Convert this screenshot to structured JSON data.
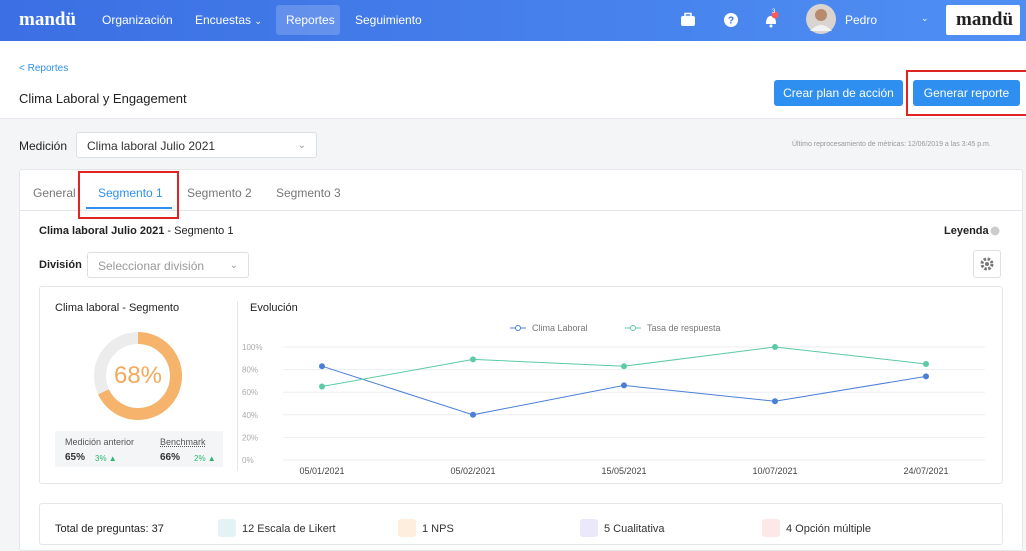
{
  "nav": {
    "logo": "mandü",
    "items": [
      "Organización",
      "Encuestas",
      "Reportes",
      "Seguimiento"
    ],
    "badge": "3",
    "user": "Pedro",
    "brand": "mandü"
  },
  "header": {
    "breadcrumb": "< Reportes",
    "title": "Clima Laboral y Engagement",
    "buttons": [
      "Crear plan de acción",
      "Generar reporte"
    ]
  },
  "filter": {
    "label": "Medición",
    "selected": "Clima laboral Julio 2021",
    "note": "Último reprocesamiento de métricas: 12/06/2019 a las 3:45 p.m."
  },
  "tabs": [
    "General",
    "Segmento 1",
    "Segmento 2",
    "Segmento 3"
  ],
  "card": {
    "title": "Clima laboral Julio 2021",
    "subtitle": " - Segmento 1",
    "legend_link": "Leyenda",
    "division_label": "División",
    "division_placeholder": "Seleccionar división"
  },
  "gauge": {
    "title": "Clima laboral - Segmento",
    "value": 68,
    "value_label": "68%",
    "stats": [
      {
        "label": "Medición anterior",
        "value": "65%",
        "change": "3%"
      },
      {
        "label": "Benchmark",
        "value": "66%",
        "change": "2%"
      }
    ]
  },
  "chart_data": {
    "type": "line",
    "title": "Evolución",
    "categories": [
      "05/01/2021",
      "05/02/2021",
      "15/05/2021",
      "10/07/2021",
      "24/07/2021"
    ],
    "series": [
      {
        "name": "Clima Laboral",
        "color": "#4a7fd6",
        "values": [
          83,
          40,
          66,
          52,
          74
        ]
      },
      {
        "name": "Tasa de respuesta",
        "color": "#5ccba3",
        "values": [
          65,
          89,
          83,
          100,
          85
        ]
      }
    ],
    "ylim": [
      0,
      100
    ],
    "yticks": [
      {
        "value": 0,
        "label": "0%"
      },
      {
        "value": 20,
        "label": "20%"
      },
      {
        "value": 40,
        "label": "40%"
      },
      {
        "value": 60,
        "label": "60%"
      },
      {
        "value": 80,
        "label": "80%"
      },
      {
        "value": 100,
        "label": "100%"
      }
    ],
    "grid": true
  },
  "summary": {
    "total": "Total de preguntas: 37",
    "types": [
      "12 Escala de Likert",
      "1 NPS",
      "5 Cualitativa",
      "4 Opción múltiple"
    ]
  }
}
